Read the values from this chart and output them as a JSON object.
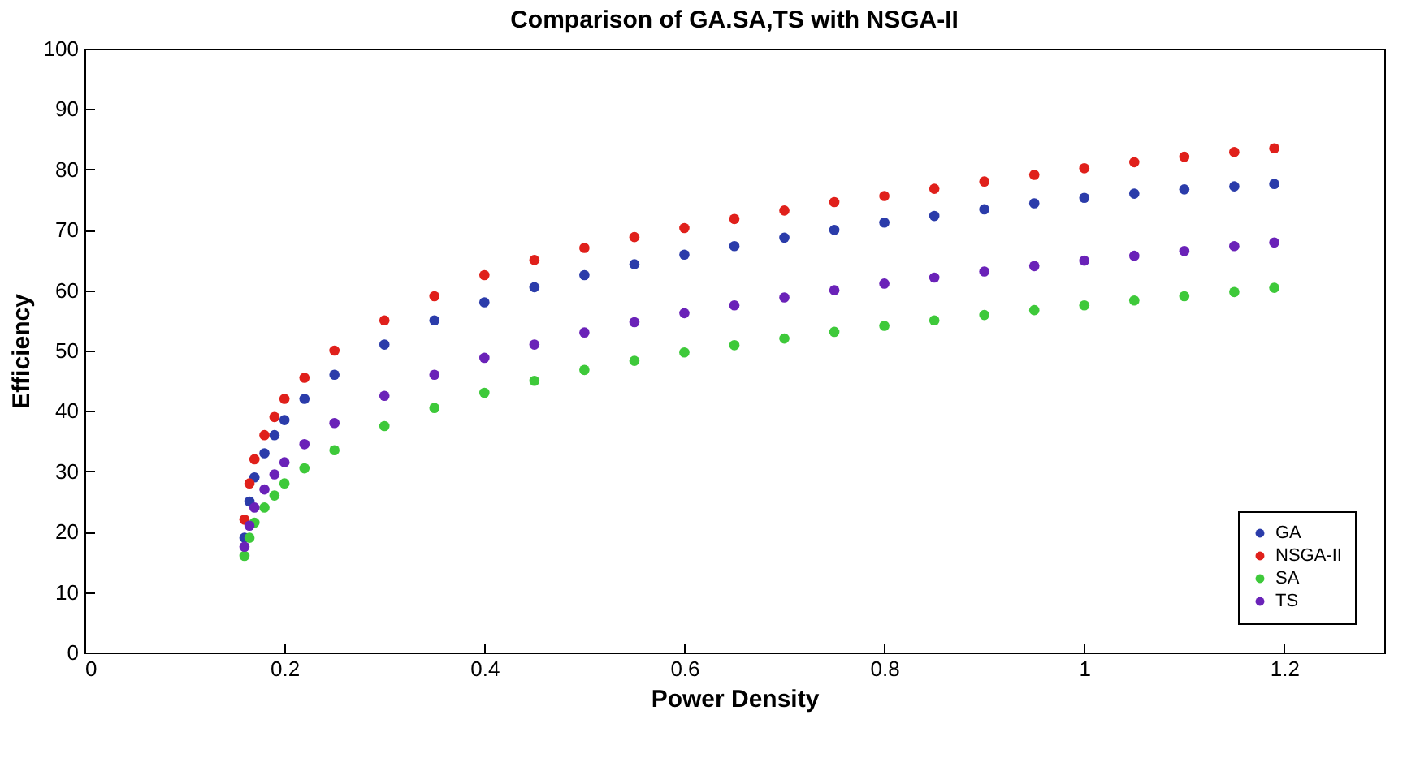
{
  "chart_data": {
    "type": "scatter",
    "title": "Comparison of GA.SA,TS with NSGA-II",
    "xlabel": "Power Density",
    "ylabel": "Efficiency",
    "x": [
      0.16,
      0.165,
      0.17,
      0.18,
      0.19,
      0.2,
      0.22,
      0.25,
      0.3,
      0.35,
      0.4,
      0.45,
      0.5,
      0.55,
      0.6,
      0.65,
      0.7,
      0.75,
      0.8,
      0.85,
      0.9,
      0.95,
      1.0,
      1.05,
      1.1,
      1.15,
      1.19
    ],
    "series": [
      {
        "name": "GA",
        "color": "#2b3caa",
        "values": [
          19,
          25,
          29,
          33,
          36,
          38.5,
          42,
          46,
          51,
          55,
          58,
          60.5,
          62.5,
          64.3,
          65.9,
          67.3,
          68.7,
          70,
          71.2,
          72.3,
          73.4,
          74.4,
          75.3,
          76,
          76.7,
          77.2,
          77.6
        ]
      },
      {
        "name": "NSGA-II",
        "color": "#e0201b",
        "values": [
          22,
          28,
          32,
          36,
          39,
          42,
          45.5,
          50,
          55,
          59,
          62.5,
          65,
          67,
          68.8,
          70.3,
          71.8,
          73.2,
          74.6,
          75.6,
          76.8,
          78,
          79.1,
          80.2,
          81.2,
          82.1,
          82.9,
          83.5
        ]
      },
      {
        "name": "SA",
        "color": "#3ec93a",
        "values": [
          16,
          19,
          21.5,
          24,
          26,
          28,
          30.5,
          33.5,
          37.5,
          40.5,
          43,
          45,
          46.8,
          48.3,
          49.7,
          50.9,
          52,
          53.1,
          54.1,
          55,
          55.9,
          56.7,
          57.5,
          58.3,
          59,
          59.7,
          60.4
        ]
      },
      {
        "name": "TS",
        "color": "#6a22b8",
        "values": [
          17.5,
          21,
          24,
          27,
          29.5,
          31.5,
          34.5,
          38,
          42.5,
          46,
          48.8,
          51,
          53,
          54.7,
          56.2,
          57.5,
          58.8,
          60,
          61.1,
          62.1,
          63.1,
          64,
          64.9,
          65.7,
          66.5,
          67.3,
          67.9
        ]
      }
    ],
    "xlim": [
      0,
      1.3
    ],
    "xticks": [
      0,
      0.2,
      0.4,
      0.6,
      0.8,
      1,
      1.2
    ],
    "ylim": [
      0,
      100
    ],
    "yticks": [
      0,
      10,
      20,
      30,
      40,
      50,
      60,
      70,
      80,
      90,
      100
    ],
    "legend": "bottom right",
    "marker": "circle",
    "grid": false
  }
}
